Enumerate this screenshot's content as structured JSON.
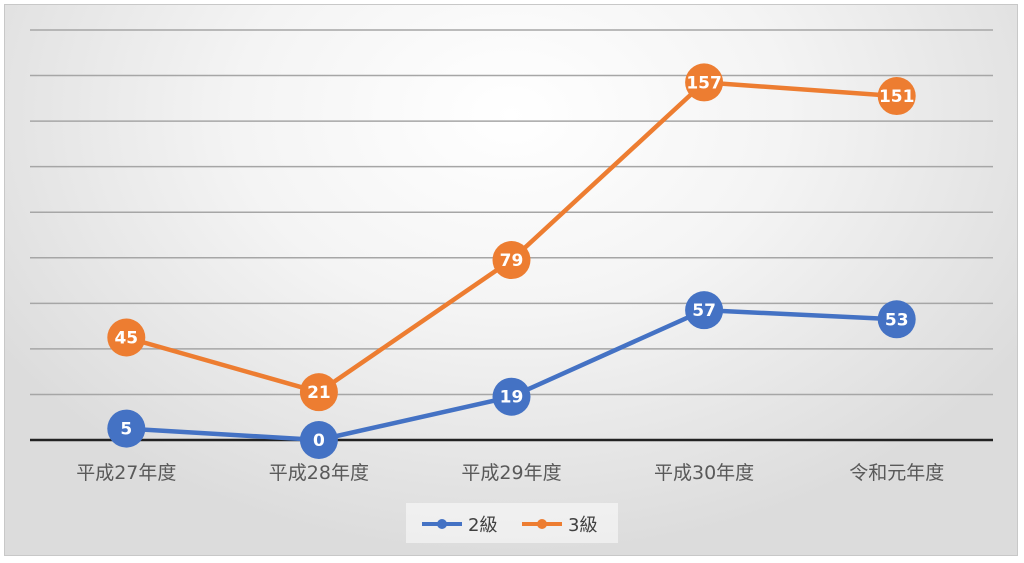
{
  "chart_data": {
    "type": "line",
    "categories": [
      "平成27年度",
      "平成28年度",
      "平成29年度",
      "平成30年度",
      "令和元年度"
    ],
    "series": [
      {
        "name": "2級",
        "values": [
          5,
          0,
          19,
          57,
          53
        ],
        "color": "#4472C4"
      },
      {
        "name": "3級",
        "values": [
          45,
          21,
          79,
          157,
          151
        ],
        "color": "#ED7D31"
      }
    ],
    "ylim": [
      0,
      180
    ],
    "grid": true,
    "data_labels": true,
    "legend": "bottom"
  }
}
